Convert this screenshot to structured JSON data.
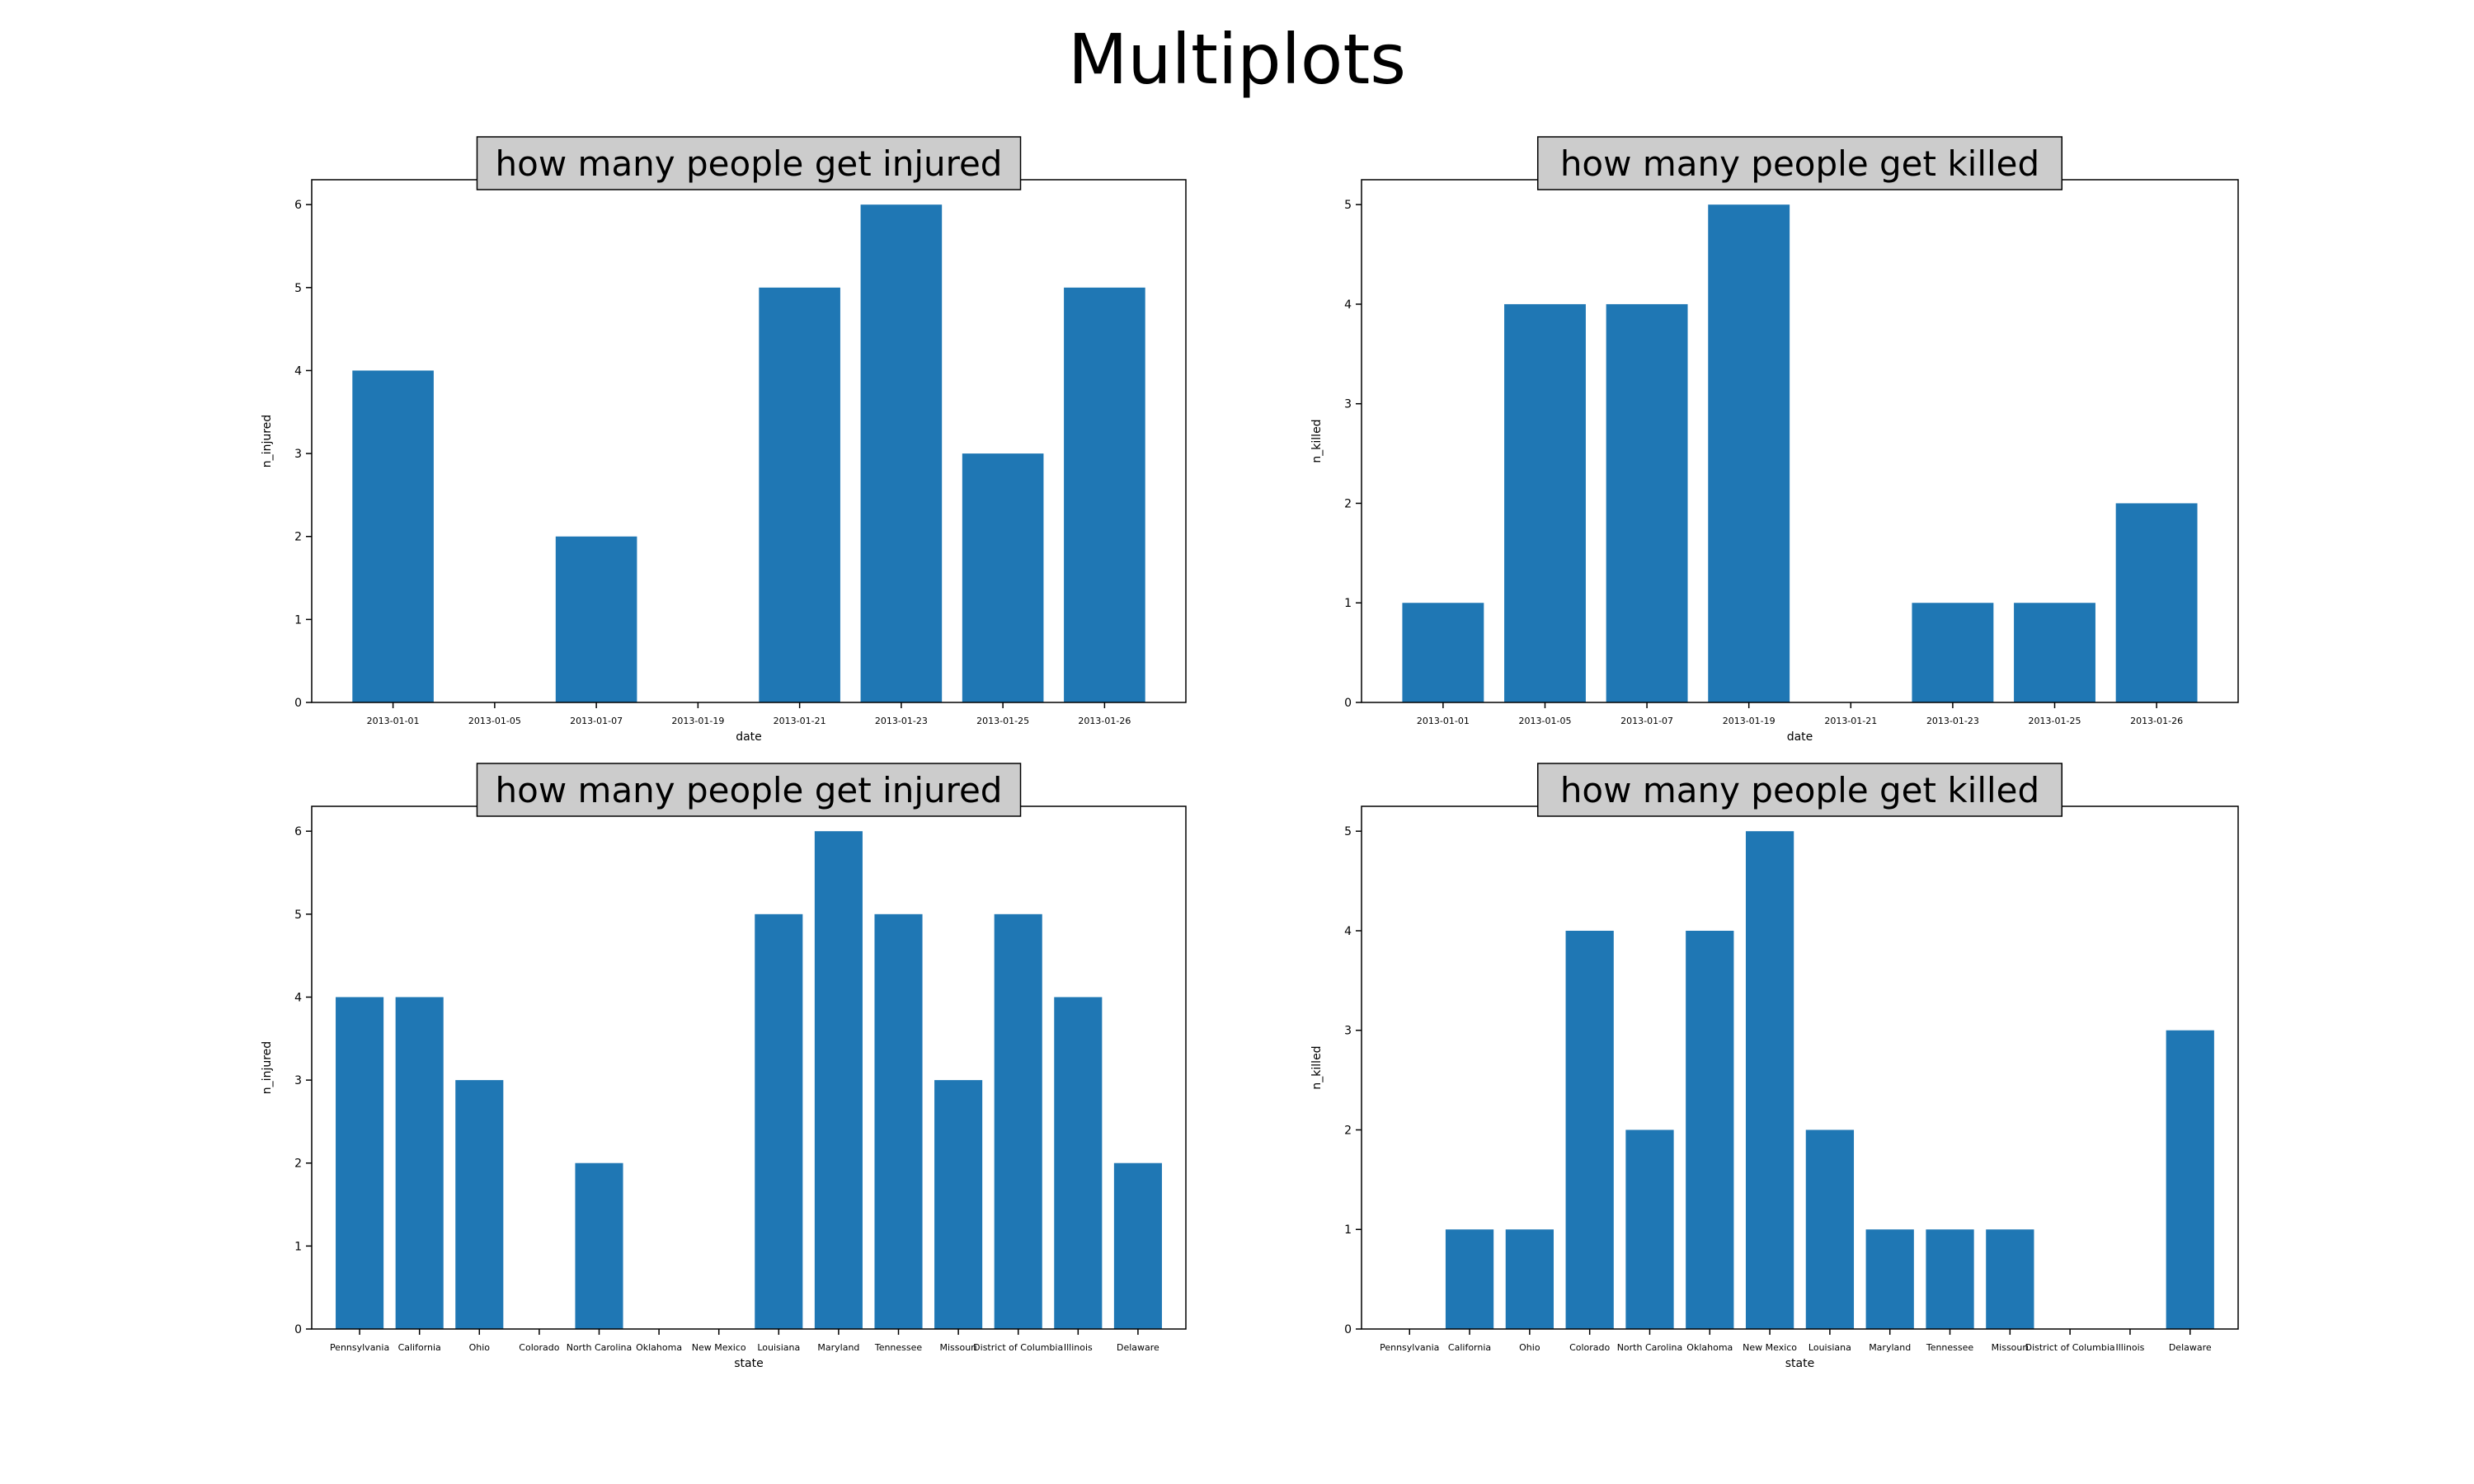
{
  "figure": {
    "title": "Multiplots"
  },
  "colors": {
    "bar": "#1f77b4",
    "title_box": "#cccccc",
    "axes": "#000000",
    "background": "#ffffff"
  },
  "chart_data": [
    {
      "type": "bar",
      "title": "how many people get injured",
      "xlabel": "date",
      "ylabel": "n_injured",
      "categories": [
        "2013-01-01",
        "2013-01-05",
        "2013-01-07",
        "2013-01-19",
        "2013-01-21",
        "2013-01-23",
        "2013-01-25",
        "2013-01-26"
      ],
      "values": [
        4,
        0,
        2,
        0,
        5,
        6,
        3,
        5
      ],
      "ylim": [
        0,
        6.3
      ],
      "yticks": [
        0,
        1,
        2,
        3,
        4,
        5,
        6
      ],
      "grid": false,
      "legend": "none"
    },
    {
      "type": "bar",
      "title": "how many people get killed",
      "xlabel": "date",
      "ylabel": "n_killed",
      "categories": [
        "2013-01-01",
        "2013-01-05",
        "2013-01-07",
        "2013-01-19",
        "2013-01-21",
        "2013-01-23",
        "2013-01-25",
        "2013-01-26"
      ],
      "values": [
        1,
        4,
        4,
        5,
        0,
        1,
        1,
        2
      ],
      "ylim": [
        0,
        5.25
      ],
      "yticks": [
        0,
        1,
        2,
        3,
        4,
        5
      ],
      "grid": false,
      "legend": "none"
    },
    {
      "type": "bar",
      "title": "how many people get injured",
      "xlabel": "state",
      "ylabel": "n_injured",
      "categories": [
        "Pennsylvania",
        "California",
        "Ohio",
        "Colorado",
        "North Carolina",
        "Oklahoma",
        "New Mexico",
        "Louisiana",
        "Maryland",
        "Tennessee",
        "Missouri",
        "District of Columbia",
        "Illinois",
        "Delaware"
      ],
      "values": [
        4,
        4,
        3,
        0,
        2,
        0,
        0,
        5,
        6,
        5,
        3,
        5,
        4,
        2
      ],
      "ylim": [
        0,
        6.3
      ],
      "yticks": [
        0,
        1,
        2,
        3,
        4,
        5,
        6
      ],
      "grid": false,
      "legend": "none"
    },
    {
      "type": "bar",
      "title": "how many people get killed",
      "xlabel": "state",
      "ylabel": "n_killed",
      "categories": [
        "Pennsylvania",
        "California",
        "Ohio",
        "Colorado",
        "North Carolina",
        "Oklahoma",
        "New Mexico",
        "Louisiana",
        "Maryland",
        "Tennessee",
        "Missouri",
        "District of Columbia",
        "Illinois",
        "Delaware"
      ],
      "values": [
        0,
        1,
        1,
        4,
        2,
        4,
        5,
        2,
        1,
        1,
        1,
        0,
        0,
        3
      ],
      "ylim": [
        0,
        5.25
      ],
      "yticks": [
        0,
        1,
        2,
        3,
        4,
        5
      ],
      "grid": false,
      "legend": "none"
    }
  ]
}
